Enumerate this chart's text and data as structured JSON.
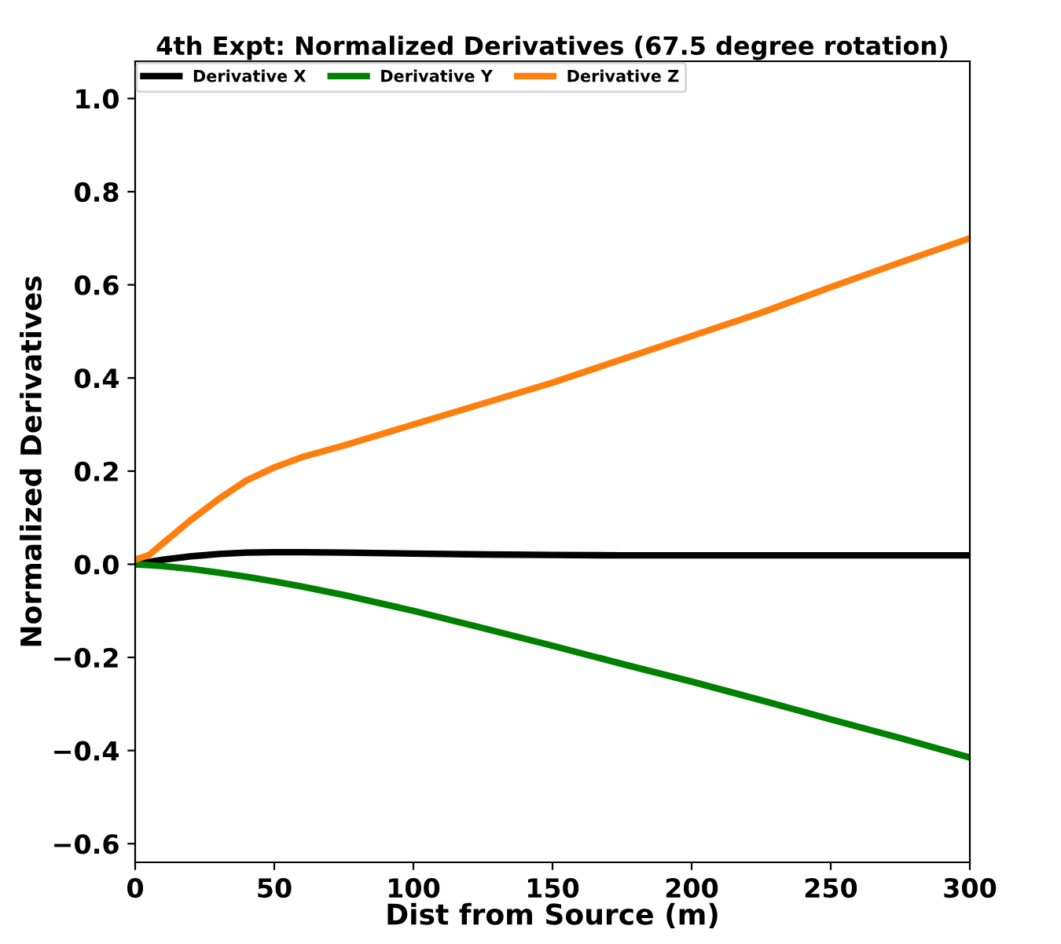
{
  "chart_data": {
    "type": "line",
    "title": "4th Expt: Normalized Derivatives (67.5 degree rotation)",
    "xlabel": "Dist from Source (m)",
    "ylabel": "Normalized Derivatives",
    "xlim": [
      0,
      300
    ],
    "xticks": [
      0,
      50,
      100,
      150,
      200,
      250,
      300
    ],
    "ylim": [
      -0.64,
      1.08
    ],
    "yticks": [
      {
        "value": -0.6,
        "label": "−0.6"
      },
      {
        "value": -0.4,
        "label": "−0.4"
      },
      {
        "value": -0.2,
        "label": "−0.2"
      },
      {
        "value": 0,
        "label": "0.0"
      },
      {
        "value": 0.2,
        "label": "0.2"
      },
      {
        "value": 0.4,
        "label": "0.4"
      },
      {
        "value": 0.6,
        "label": "0.6"
      },
      {
        "value": 0.8,
        "label": "0.8"
      },
      {
        "value": 1.0,
        "label": "1.0"
      }
    ],
    "x": [
      0,
      5,
      10,
      20,
      30,
      40,
      50,
      60,
      75,
      100,
      125,
      150,
      175,
      200,
      225,
      250,
      275,
      300
    ],
    "series": [
      {
        "name": "Derivative X",
        "color": "#000000",
        "values": [
          0,
          0.005,
          0.01,
          0.017,
          0.022,
          0.025,
          0.026,
          0.026,
          0.025,
          0.023,
          0.021,
          0.02,
          0.019,
          0.019,
          0.019,
          0.019,
          0.019,
          0.019
        ]
      },
      {
        "name": "Derivative Y",
        "color": "#008000",
        "values": [
          0,
          -0.002,
          -0.004,
          -0.01,
          -0.018,
          -0.027,
          -0.037,
          -0.048,
          -0.066,
          -0.1,
          -0.137,
          -0.175,
          -0.214,
          -0.252,
          -0.292,
          -0.333,
          -0.373,
          -0.415
        ]
      },
      {
        "name": "Derivative Z",
        "color": "#ff7f0e",
        "values": [
          0.01,
          0.02,
          0.045,
          0.095,
          0.14,
          0.18,
          0.208,
          0.23,
          0.255,
          0.3,
          0.345,
          0.39,
          0.44,
          0.49,
          0.54,
          0.595,
          0.648,
          0.7
        ]
      }
    ],
    "legend": "top left",
    "grid": false,
    "marker": "none",
    "line_style": "solid"
  }
}
